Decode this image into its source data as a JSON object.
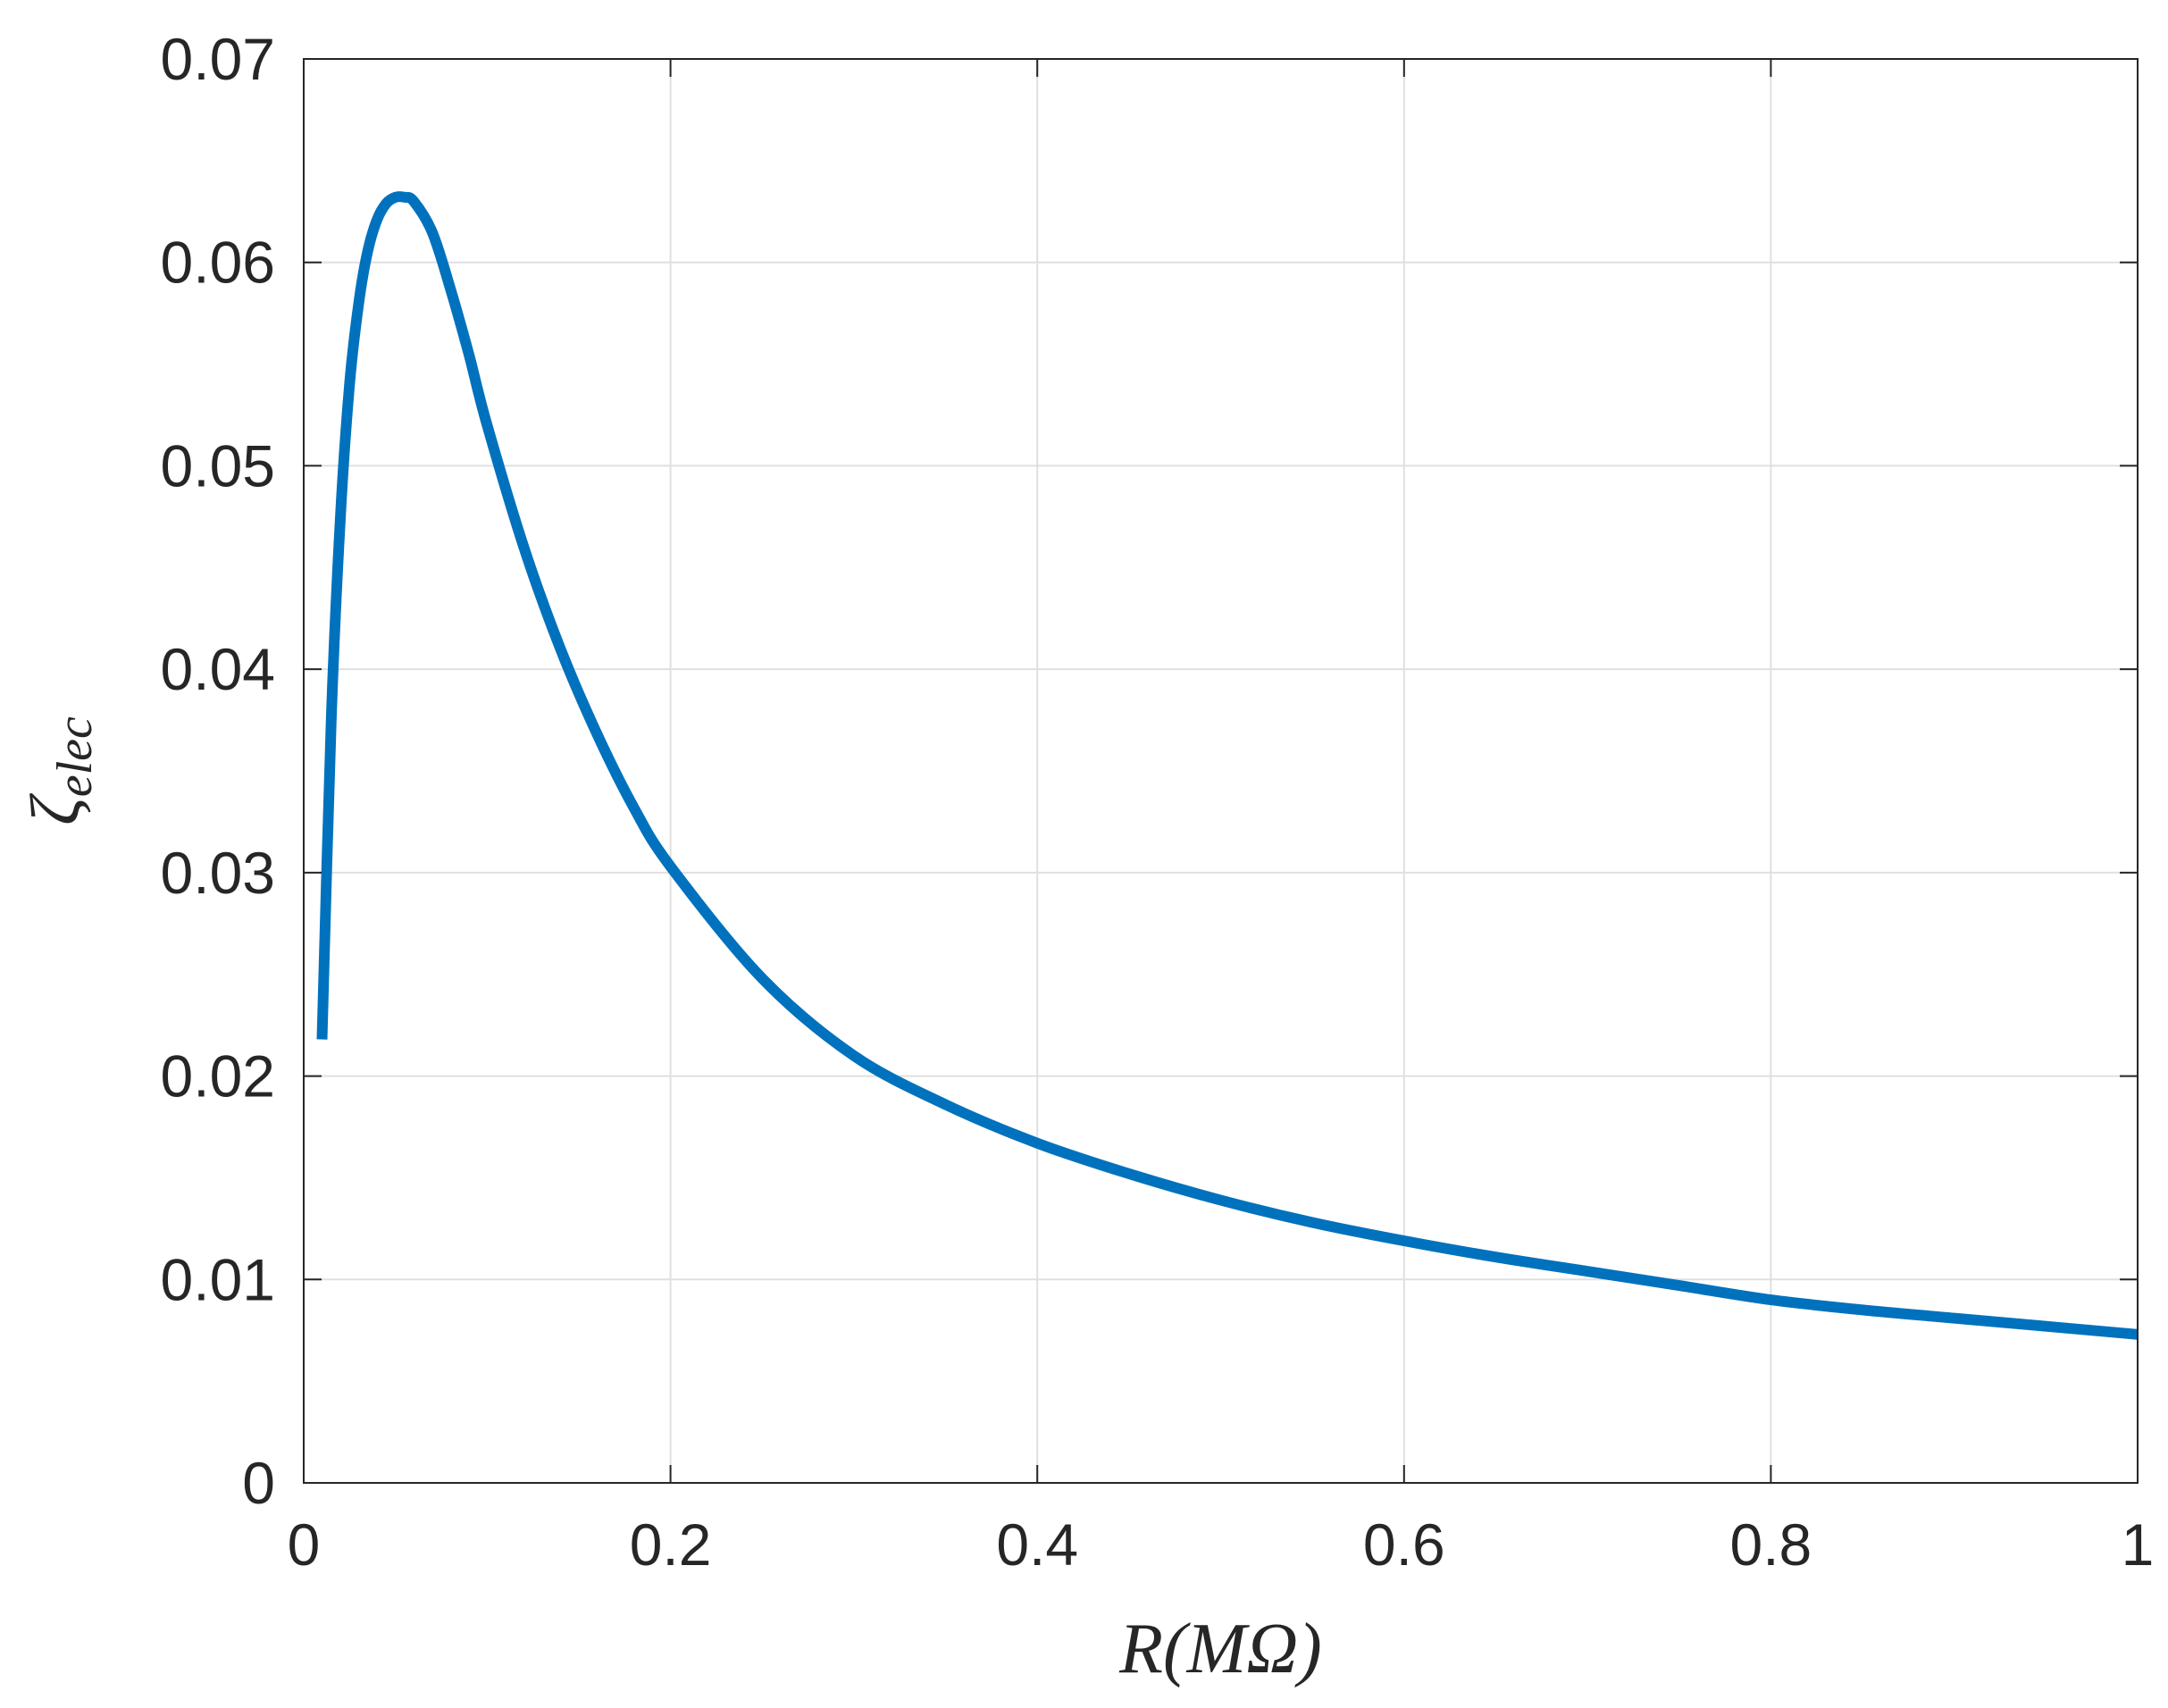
{
  "chart_data": {
    "type": "line",
    "xlabel": {
      "main": "R(MΩ)"
    },
    "ylabel": {
      "symbol": "ζ",
      "subscript": "elec"
    },
    "xlim": [
      0,
      1
    ],
    "ylim": [
      0,
      0.07
    ],
    "x_ticks": [
      0,
      0.2,
      0.4,
      0.6,
      0.8,
      1
    ],
    "x_tick_labels": [
      "0",
      "0.2",
      "0.4",
      "0.6",
      "0.8",
      "1"
    ],
    "y_ticks": [
      0,
      0.01,
      0.02,
      0.03,
      0.04,
      0.05,
      0.06,
      0.07
    ],
    "y_tick_labels": [
      "0",
      "0.01",
      "0.02",
      "0.03",
      "0.04",
      "0.05",
      "0.06",
      "0.07"
    ],
    "grid": true,
    "series": [
      {
        "color": "#0072bd",
        "x": [
          0.01,
          0.015,
          0.02,
          0.025,
          0.03,
          0.035,
          0.04,
          0.045,
          0.05,
          0.055,
          0.06,
          0.07,
          0.08,
          0.09,
          0.1,
          0.12,
          0.14,
          0.16,
          0.18,
          0.2,
          0.25,
          0.3,
          0.35,
          0.4,
          0.45,
          0.5,
          0.55,
          0.6,
          0.65,
          0.7,
          0.75,
          0.8,
          0.85,
          0.9,
          0.95,
          1.0
        ],
        "y": [
          0.0218,
          0.0375,
          0.0475,
          0.054,
          0.058,
          0.0606,
          0.0621,
          0.0629,
          0.0632,
          0.0632,
          0.063,
          0.0615,
          0.0587,
          0.0555,
          0.052,
          0.046,
          0.041,
          0.0368,
          0.0332,
          0.0303,
          0.0248,
          0.021,
          0.0186,
          0.0167,
          0.0152,
          0.0139,
          0.0128,
          0.0119,
          0.0111,
          0.0104,
          0.0097,
          0.009,
          0.0085,
          0.0081,
          0.0077,
          0.0073
        ]
      }
    ]
  }
}
